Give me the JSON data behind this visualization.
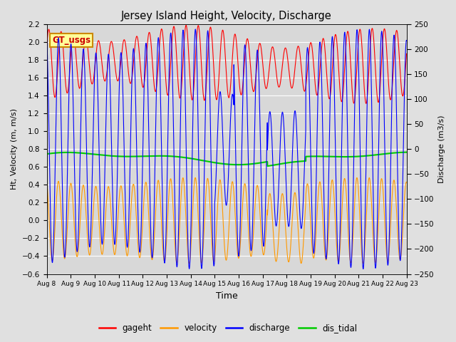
{
  "title": "Jersey Island Height, Velocity, Discharge",
  "xlabel": "Time",
  "ylabel_left": "Ht, Velocity (m, m/s)",
  "ylabel_right": "Discharge (m3/s)",
  "ylim_left": [
    -0.6,
    2.2
  ],
  "ylim_right": [
    -250,
    250
  ],
  "yticks_left": [
    -0.6,
    -0.4,
    -0.2,
    0.0,
    0.2,
    0.4,
    0.6,
    0.8,
    1.0,
    1.2,
    1.4,
    1.6,
    1.8,
    2.0,
    2.2
  ],
  "yticks_right": [
    -250,
    -200,
    -150,
    -100,
    -50,
    0,
    50,
    100,
    150,
    200,
    250
  ],
  "xtick_labels": [
    "Aug 8",
    "Aug 9",
    "Aug 10",
    "Aug 11",
    "Aug 12",
    "Aug 13",
    "Aug 14",
    "Aug 15",
    "Aug 16",
    "Aug 17",
    "Aug 18",
    "Aug 19",
    "Aug 20",
    "Aug 21",
    "Aug 22",
    "Aug 23"
  ],
  "colors": {
    "gageht": "#ff0000",
    "velocity": "#ff9900",
    "discharge": "#0000ff",
    "dis_tidal": "#00cc00"
  },
  "legend_label": "GT_usgs",
  "legend_box_color": "#ffff99",
  "legend_box_edge": "#cc8800",
  "background_color": "#e0e0e0",
  "plot_bg_top": "#d8d8d8",
  "plot_bg_bot": "#e8e8e8",
  "grid_color": "#ffffff",
  "linewidth": 0.8,
  "tidal_lw": 1.5,
  "figsize": [
    6.4,
    4.8
  ],
  "dpi": 100
}
